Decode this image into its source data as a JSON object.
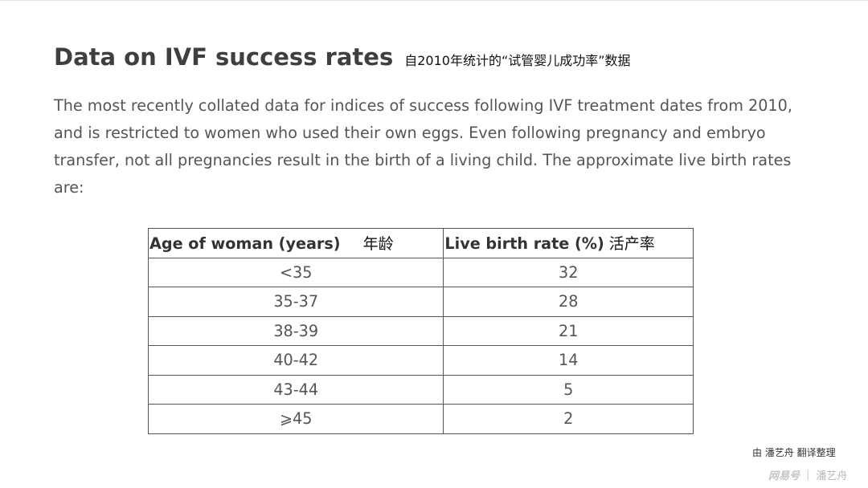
{
  "header": {
    "title": "Data on IVF success rates",
    "subtitle_cn": "自2010年统计的“试管婴儿成功率”数据"
  },
  "intro": {
    "text": "The most recently collated data for indices of success following IVF treatment dates from 2010, and is restricted to women who used their own eggs. Even following pregnancy and embryo transfer, not all pregnancies result in the birth of a living child. The approximate live birth rates are:"
  },
  "table": {
    "headers": [
      {
        "label": "Age of woman (years)",
        "cn": "年龄"
      },
      {
        "label": "Live birth rate (%)",
        "cn": "活产率"
      }
    ],
    "rows": [
      {
        "age": "<35",
        "rate": "32"
      },
      {
        "age": "35-37",
        "rate": "28"
      },
      {
        "age": "38-39",
        "rate": "21"
      },
      {
        "age": "40-42",
        "rate": "14"
      },
      {
        "age": "43-44",
        "rate": "5"
      },
      {
        "age": "⩾45",
        "rate": "2"
      }
    ]
  },
  "footer": {
    "credit": "由 潘艺舟 翻译整理",
    "watermark_brand": "网易号",
    "watermark_sep": "|",
    "watermark_author": "潘艺舟"
  }
}
